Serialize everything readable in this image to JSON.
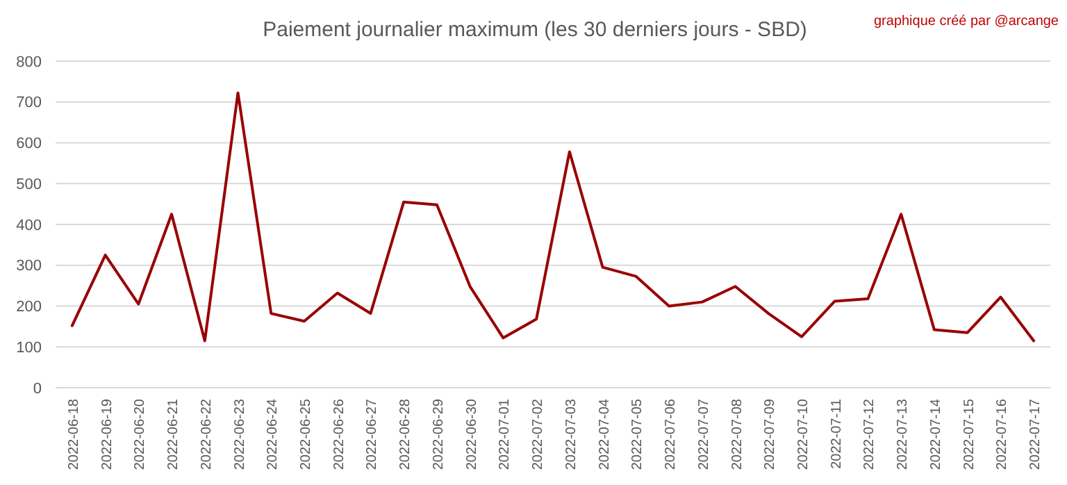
{
  "chart_data": {
    "type": "line",
    "title": "Paiement journalier maximum (les 30 derniers jours - SBD)",
    "annotations": [
      "graphique créé par @arcange"
    ],
    "categories": [
      "2022-06-18",
      "2022-06-19",
      "2022-06-20",
      "2022-06-21",
      "2022-06-22",
      "2022-06-23",
      "2022-06-24",
      "2022-06-25",
      "2022-06-26",
      "2022-06-27",
      "2022-06-28",
      "2022-06-29",
      "2022-06-30",
      "2022-07-01",
      "2022-07-02",
      "2022-07-03",
      "2022-07-04",
      "2022-07-05",
      "2022-07-06",
      "2022-07-07",
      "2022-07-08",
      "2022-07-09",
      "2022-07-10",
      "2022-07-11",
      "2022-07-12",
      "2022-07-13",
      "2022-07-14",
      "2022-07-15",
      "2022-07-16",
      "2022-07-17"
    ],
    "series": [
      {
        "color": "#990000",
        "values": [
          152,
          325,
          205,
          425,
          115,
          722,
          182,
          163,
          232,
          182,
          455,
          448,
          248,
          122,
          168,
          578,
          295,
          273,
          200,
          210,
          248,
          182,
          125,
          212,
          218,
          425,
          142,
          135,
          222,
          115
        ]
      }
    ],
    "ylim": [
      0,
      800
    ],
    "yticks": [
      0,
      100,
      200,
      300,
      400,
      500,
      600,
      700,
      800
    ],
    "grid": "y",
    "marker": "none",
    "line_style": "solid"
  }
}
